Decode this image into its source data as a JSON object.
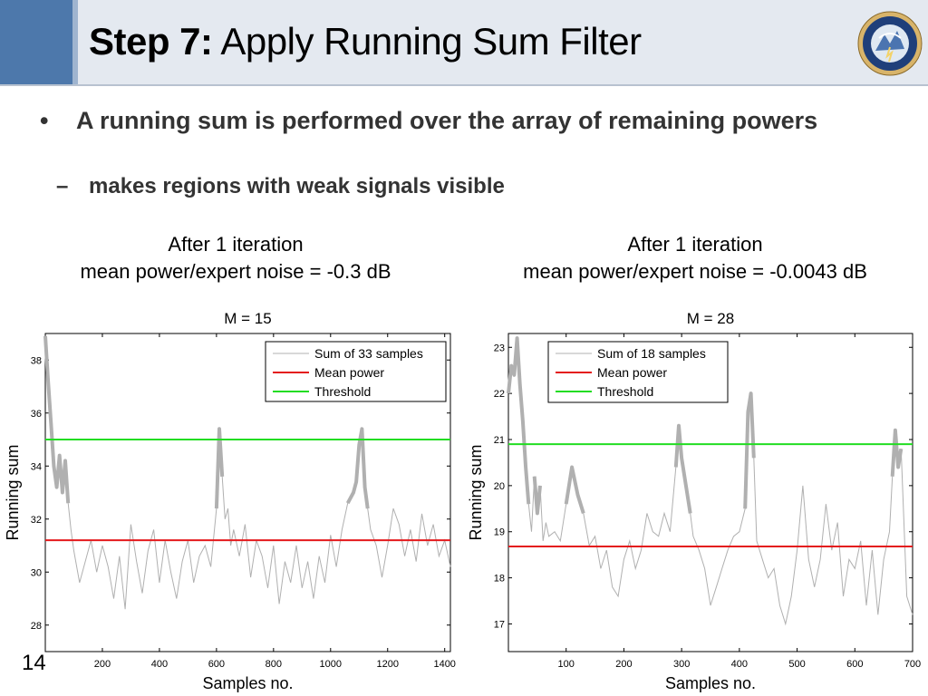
{
  "slide": {
    "title_bold": "Step 7:",
    "title_rest": " Apply Running Sum Filter",
    "bullet_main": "A running sum is performed over the array of remaining powers",
    "bullet_sub": "makes regions with weak signals visible",
    "page_number": "14"
  },
  "colors": {
    "header_bg": "#e4e9f0",
    "header_accent": "#4d78ab",
    "mean_power": "#e41a1c",
    "threshold": "#22dd22",
    "signal": "#b0b0b0"
  },
  "icons": {
    "logo": "nssl-seal-icon"
  },
  "chart_data": [
    {
      "type": "line",
      "caption_line1": "After 1 iteration",
      "caption_line2": "mean power/expert noise = -0.3 dB",
      "title": "M = 15",
      "xlabel": "Samples no.",
      "ylabel": "Running sum",
      "xlim": [
        0,
        1420
      ],
      "ylim": [
        27,
        39
      ],
      "xticks": [
        200,
        400,
        600,
        800,
        1000,
        1200,
        1400
      ],
      "yticks": [
        28,
        30,
        32,
        34,
        36,
        38
      ],
      "grid": false,
      "legend_position": "top-right",
      "legend": [
        "Sum of 33 samples",
        "Mean power",
        "Threshold"
      ],
      "mean_power": 31.2,
      "threshold": 35.0,
      "series": [
        {
          "name": "Sum of 33 samples",
          "x": [
            0,
            10,
            20,
            30,
            40,
            50,
            60,
            70,
            80,
            90,
            100,
            120,
            140,
            160,
            180,
            200,
            220,
            240,
            260,
            280,
            300,
            320,
            340,
            360,
            380,
            400,
            420,
            440,
            460,
            480,
            500,
            520,
            540,
            560,
            580,
            600,
            610,
            620,
            630,
            640,
            650,
            660,
            680,
            700,
            720,
            740,
            760,
            780,
            800,
            820,
            840,
            860,
            880,
            900,
            920,
            940,
            960,
            980,
            1000,
            1020,
            1040,
            1060,
            1080,
            1090,
            1100,
            1110,
            1120,
            1130,
            1140,
            1160,
            1180,
            1200,
            1220,
            1240,
            1260,
            1280,
            1300,
            1320,
            1340,
            1360,
            1380,
            1400,
            1420
          ],
          "values": [
            38.9,
            37.2,
            35.6,
            34.0,
            33.2,
            34.4,
            33.0,
            34.2,
            32.6,
            31.6,
            30.8,
            29.6,
            30.4,
            31.2,
            30.0,
            31.0,
            30.2,
            29.0,
            30.6,
            28.6,
            31.8,
            30.4,
            29.2,
            30.8,
            31.6,
            29.6,
            31.2,
            30.0,
            29.0,
            30.4,
            31.2,
            29.6,
            30.6,
            31.0,
            30.2,
            32.4,
            35.4,
            33.6,
            32.0,
            32.4,
            31.0,
            31.6,
            30.6,
            31.8,
            29.8,
            31.2,
            30.6,
            29.4,
            31.0,
            28.8,
            30.4,
            29.6,
            31.0,
            29.4,
            30.4,
            29.0,
            30.6,
            29.6,
            31.4,
            30.2,
            31.6,
            32.6,
            33.0,
            33.4,
            34.8,
            35.4,
            33.2,
            32.4,
            31.6,
            31.0,
            29.8,
            31.0,
            32.4,
            31.8,
            30.6,
            31.6,
            30.4,
            32.2,
            31.0,
            31.8,
            30.6,
            31.2,
            30.2
          ]
        }
      ]
    },
    {
      "type": "line",
      "caption_line1": "After 1 iteration",
      "caption_line2": "mean power/expert noise = -0.0043 dB",
      "title": "M = 28",
      "xlabel": "Samples no.",
      "ylabel": "Running sum",
      "xlim": [
        0,
        700
      ],
      "ylim": [
        16.4,
        23.3
      ],
      "xticks": [
        100,
        200,
        300,
        400,
        500,
        600,
        700
      ],
      "yticks": [
        17,
        18,
        19,
        20,
        21,
        22,
        23
      ],
      "grid": false,
      "legend_position": "top-right",
      "legend": [
        "Sum of 18 samples",
        "Mean power",
        "Threshold"
      ],
      "mean_power": 18.68,
      "threshold": 20.9,
      "series": [
        {
          "name": "Sum of 18 samples",
          "x": [
            0,
            5,
            10,
            15,
            20,
            25,
            30,
            35,
            40,
            45,
            50,
            55,
            60,
            65,
            70,
            80,
            90,
            100,
            110,
            120,
            130,
            140,
            150,
            160,
            170,
            180,
            190,
            200,
            210,
            220,
            230,
            240,
            250,
            260,
            270,
            280,
            290,
            295,
            300,
            305,
            310,
            315,
            320,
            330,
            340,
            350,
            360,
            370,
            380,
            390,
            400,
            410,
            415,
            420,
            425,
            430,
            440,
            450,
            460,
            470,
            480,
            490,
            500,
            510,
            520,
            530,
            540,
            550,
            560,
            570,
            580,
            590,
            600,
            610,
            620,
            630,
            640,
            650,
            660,
            665,
            670,
            675,
            680,
            690,
            700
          ],
          "values": [
            22.0,
            22.6,
            22.4,
            23.2,
            22.2,
            21.4,
            20.4,
            19.6,
            19.0,
            20.2,
            19.4,
            20.0,
            18.8,
            19.2,
            18.9,
            19.0,
            18.8,
            19.6,
            20.4,
            19.8,
            19.4,
            18.7,
            18.9,
            18.2,
            18.6,
            17.8,
            17.6,
            18.4,
            18.8,
            18.2,
            18.6,
            19.4,
            19.0,
            18.9,
            19.4,
            19.0,
            20.4,
            21.3,
            20.6,
            20.2,
            19.8,
            19.4,
            18.9,
            18.6,
            18.2,
            17.4,
            17.8,
            18.2,
            18.6,
            18.9,
            19.0,
            19.5,
            21.6,
            22.0,
            20.6,
            18.8,
            18.4,
            18.0,
            18.2,
            17.4,
            17.0,
            17.6,
            18.6,
            20.0,
            18.4,
            17.8,
            18.4,
            19.6,
            18.6,
            19.2,
            17.6,
            18.4,
            18.2,
            18.8,
            17.4,
            18.6,
            17.2,
            18.4,
            19.0,
            20.2,
            21.2,
            20.4,
            20.8,
            17.6,
            17.2
          ]
        }
      ]
    }
  ]
}
